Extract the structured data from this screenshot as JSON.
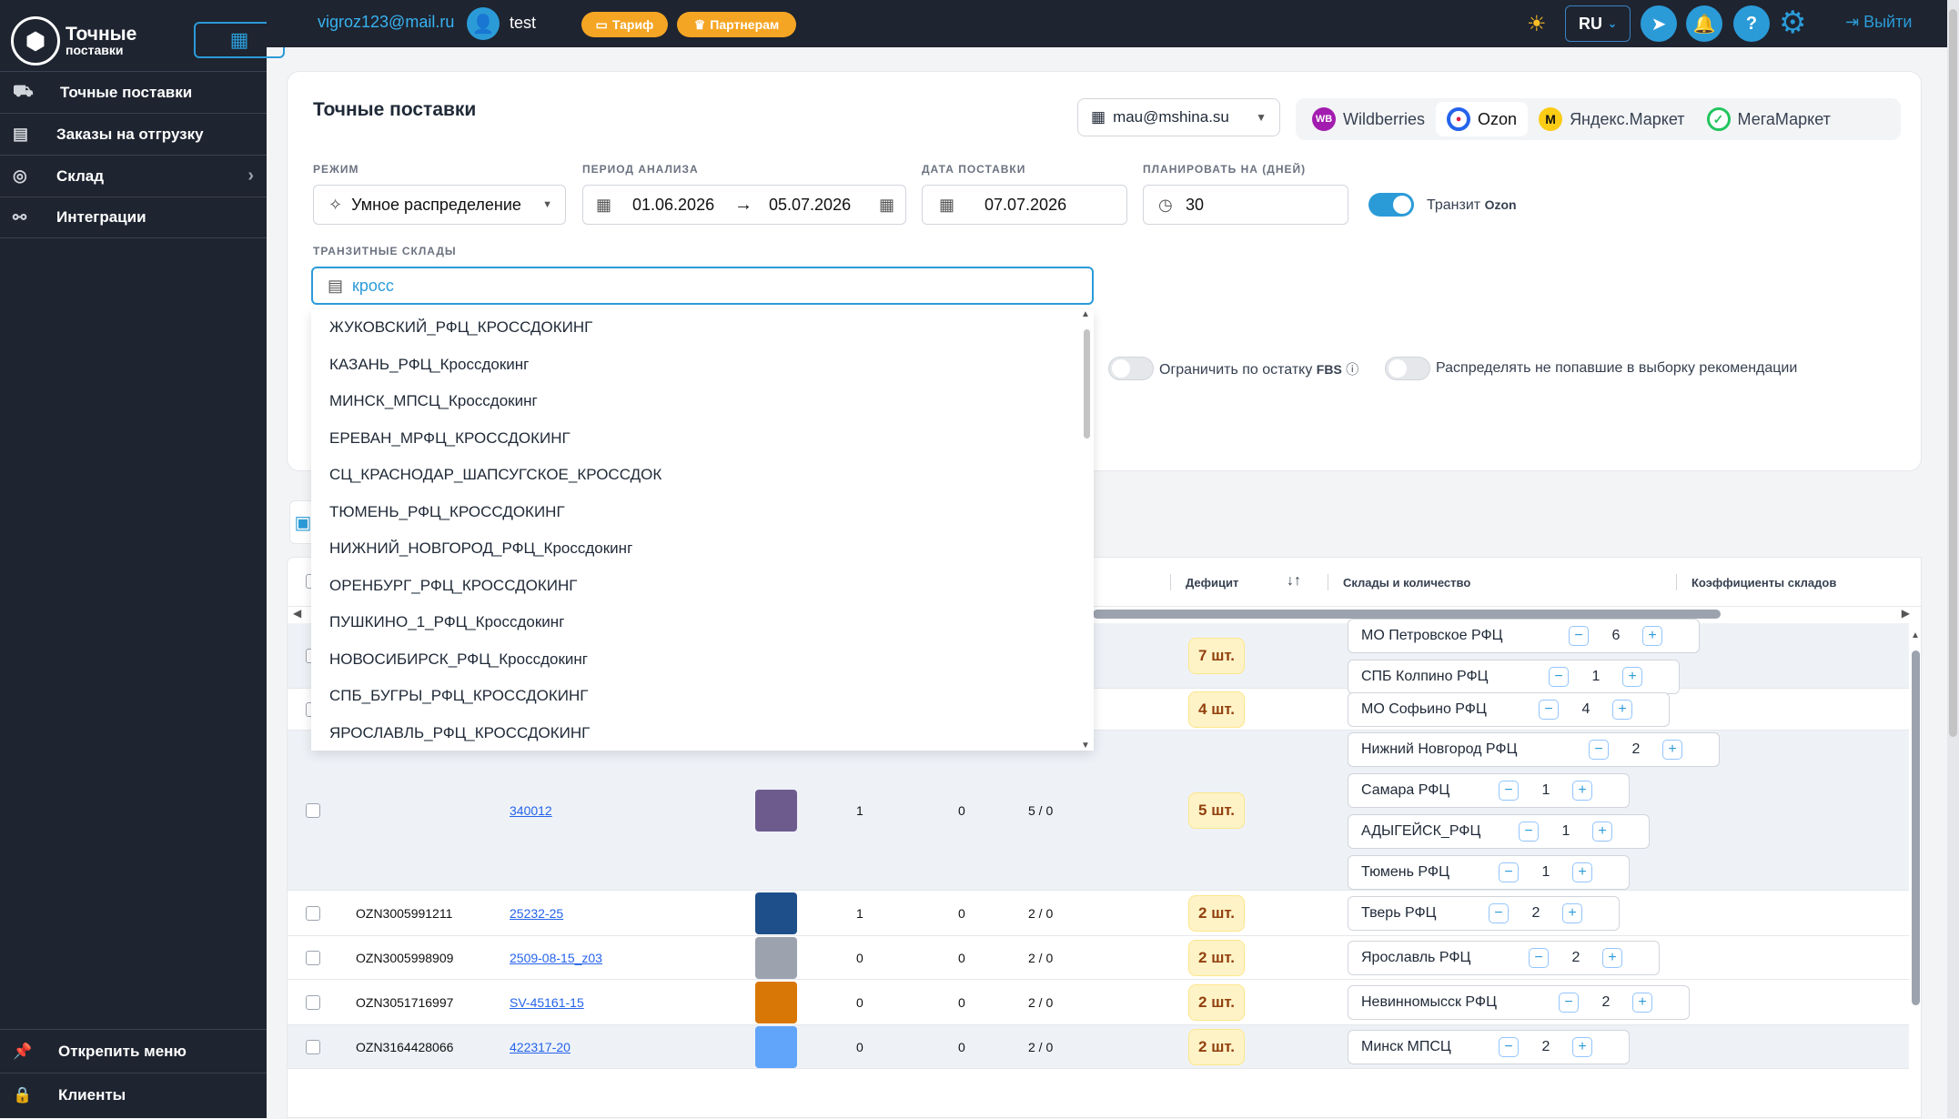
{
  "sidebar": {
    "logo_line1": "Точные",
    "logo_line2": "поставки",
    "items": [
      {
        "label": "Точные поставки",
        "icon": "truck-icon"
      },
      {
        "label": "Заказы на отгрузку",
        "icon": "warehouse-icon"
      },
      {
        "label": "Склад",
        "icon": "check-circle-icon"
      },
      {
        "label": "Интеграции",
        "icon": "integration-icon"
      }
    ],
    "unpin": "Открепить меню",
    "clients": "Клиенты"
  },
  "header": {
    "email": "vigroz123@mail.ru",
    "username": "test",
    "tariff": "Тариф",
    "partners": "Партнерам",
    "lang": "RU",
    "logout": "Выйти"
  },
  "card": {
    "title": "Точные поставки",
    "account": "mau@mshina.su",
    "marketplaces": [
      "Wildberries",
      "Ozon",
      "Яндекс.Маркет",
      "МегаМаркет"
    ],
    "active_marketplace": "Ozon",
    "mode_label": "РЕЖИМ",
    "mode_value": "Умное распределение",
    "period_label": "ПЕРИОД АНАЛИЗА",
    "period_from": "01.06.2026",
    "period_to": "05.07.2026",
    "date_label": "ДАТА ПОСТАВКИ",
    "date_value": "07.07.2026",
    "plan_label": "ПЛАНИРОВАТЬ НА (ДНЕЙ)",
    "plan_value": "30",
    "transit_toggle": "Транзит",
    "transit_brand": "Ozon",
    "transit_wh_label": "ТРАНЗИТНЫЕ СКЛАДЫ",
    "search_value": "кросс",
    "limit_fbs_a": "Ограничить по остатку",
    "limit_fbs_b": "FBS",
    "distribute": "Распределять не попавшие в выборку рекомендации"
  },
  "dropdown": [
    "ЖУКОВСКИЙ_РФЦ_КРОССДОКИНГ",
    "КАЗАНЬ_РФЦ_Кроссдокинг",
    "МИНСК_МПСЦ_Кроссдокинг",
    "ЕРЕВАН_МРФЦ_КРОССДОКИНГ",
    "СЦ_КРАСНОДАР_ШАПСУГСКОЕ_КРОССДОК",
    "ТЮМЕНЬ_РФЦ_КРОССДОКИНГ",
    "НИЖНИЙ_НОВГОРОД_РФЦ_Кроссдокинг",
    "ОРЕНБУРГ_РФЦ_КРОССДОКИНГ",
    "ПУШКИНО_1_РФЦ_Кроссдокинг",
    "НОВОСИБИРСК_РФЦ_Кроссдокинг",
    "СПБ_БУГРЫ_РФЦ_КРОССДОКИНГ",
    "ЯРОСЛАВЛЬ_РФЦ_КРОССДОКИНГ"
  ],
  "table": {
    "headers": {
      "deficit": "Дефицит",
      "warehouses": "Склады и количество",
      "coefficients": "Коэффициенты складов"
    },
    "rows": [
      {
        "sku": "",
        "article": "",
        "c1": "",
        "c2": "",
        "c3": "",
        "deficit": "7 шт.",
        "warehouses": [
          {
            "name": "МО Петровское РФЦ",
            "qty": "6"
          },
          {
            "name": "СПБ Колпино РФЦ",
            "qty": "1"
          }
        ]
      },
      {
        "sku": "",
        "article": "",
        "c1": "",
        "c2": "",
        "c3": "",
        "deficit": "4 шт.",
        "warehouses": [
          {
            "name": "МО Софьино РФЦ",
            "qty": "4"
          }
        ]
      },
      {
        "sku": "",
        "article": "340012",
        "c1": "1",
        "c2": "0",
        "c3": "5 / 0",
        "deficit": "5 шт.",
        "warehouses": [
          {
            "name": "Нижний Новгород РФЦ",
            "qty": "2"
          },
          {
            "name": "Самара РФЦ",
            "qty": "1"
          },
          {
            "name": "АДЫГЕЙСК_РФЦ",
            "qty": "1"
          },
          {
            "name": "Тюмень РФЦ",
            "qty": "1"
          }
        ]
      },
      {
        "sku": "OZN3005991211",
        "article": "25232-25",
        "c1": "1",
        "c2": "0",
        "c3": "2 / 0",
        "deficit": "2 шт.",
        "warehouses": [
          {
            "name": "Тверь РФЦ",
            "qty": "2"
          }
        ]
      },
      {
        "sku": "OZN3005998909",
        "article": "2509-08-15_z03",
        "c1": "0",
        "c2": "0",
        "c3": "2 / 0",
        "deficit": "2 шт.",
        "warehouses": [
          {
            "name": "Ярославль РФЦ",
            "qty": "2"
          }
        ]
      },
      {
        "sku": "OZN3051716997",
        "article": "SV-45161-15",
        "c1": "0",
        "c2": "0",
        "c3": "2 / 0",
        "deficit": "2 шт.",
        "warehouses": [
          {
            "name": "Невинномысск РФЦ",
            "qty": "2"
          }
        ]
      },
      {
        "sku": "OZN3164428066",
        "article": "422317-20",
        "c1": "0",
        "c2": "0",
        "c3": "2 / 0",
        "deficit": "2 шт.",
        "warehouses": [
          {
            "name": "Минск МПСЦ",
            "qty": "2"
          }
        ]
      }
    ]
  }
}
